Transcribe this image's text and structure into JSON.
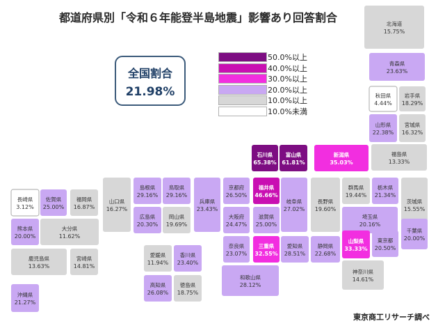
{
  "title": "都道府県別「令和６年能登半島地震」影響あり回答割合",
  "national": {
    "label": "全国割合",
    "value": "21.98%"
  },
  "source": "東京商工リサーチ調べ",
  "legend": [
    {
      "label": "50.0%以上",
      "color": "#7d0d82"
    },
    {
      "label": "40.0%以上",
      "color": "#c90fb2"
    },
    {
      "label": "30.0%以上",
      "color": "#f22ee0"
    },
    {
      "label": "20.0%以上",
      "color": "#c9a8f3"
    },
    {
      "label": "10.0%以上",
      "color": "#d7d7d7"
    },
    {
      "label": "10.0%未満",
      "color": "#ffffff"
    }
  ],
  "chart_data": {
    "type": "heatmap",
    "title": "都道府県別「令和６年能登半島地震」影響あり回答割合",
    "unit": "%",
    "prefectures": [
      {
        "name": "北海道",
        "value": 15.75,
        "label": "15.75%"
      },
      {
        "name": "青森県",
        "value": 23.63,
        "label": "23.63%"
      },
      {
        "name": "秋田県",
        "value": 4.44,
        "label": "4.44%"
      },
      {
        "name": "岩手県",
        "value": 18.29,
        "label": "18.29%"
      },
      {
        "name": "山形県",
        "value": 22.38,
        "label": "22.38%"
      },
      {
        "name": "宮城県",
        "value": 16.32,
        "label": "16.32%"
      },
      {
        "name": "福島県",
        "value": 13.33,
        "label": "13.33%"
      },
      {
        "name": "石川県",
        "value": 65.38,
        "label": "65.38%"
      },
      {
        "name": "富山県",
        "value": 61.81,
        "label": "61.81%"
      },
      {
        "name": "新潟県",
        "value": 35.03,
        "label": "35.03%"
      },
      {
        "name": "山口県",
        "value": 16.27,
        "label": "16.27%"
      },
      {
        "name": "島根県",
        "value": 29.16,
        "label": "29.16%"
      },
      {
        "name": "鳥取県",
        "value": 29.16,
        "label": "29.16%"
      },
      {
        "name": "兵庫県",
        "value": 23.43,
        "label": "23.43%"
      },
      {
        "name": "京都府",
        "value": 26.5,
        "label": "26.50%"
      },
      {
        "name": "福井県",
        "value": 46.66,
        "label": "46.66%"
      },
      {
        "name": "岐阜県",
        "value": 27.02,
        "label": "27.02%"
      },
      {
        "name": "長野県",
        "value": 19.6,
        "label": "19.60%"
      },
      {
        "name": "群馬県",
        "value": 19.44,
        "label": "19.44%"
      },
      {
        "name": "栃木県",
        "value": 21.34,
        "label": "21.34%"
      },
      {
        "name": "茨城県",
        "value": 15.55,
        "label": "15.55%"
      },
      {
        "name": "長崎県",
        "value": 3.12,
        "label": "3.12%"
      },
      {
        "name": "佐賀県",
        "value": 25.0,
        "label": "25.00%"
      },
      {
        "name": "福岡県",
        "value": 16.87,
        "label": "16.87%"
      },
      {
        "name": "広島県",
        "value": 20.3,
        "label": "20.30%"
      },
      {
        "name": "岡山県",
        "value": 19.69,
        "label": "19.69%"
      },
      {
        "name": "大阪府",
        "value": 24.47,
        "label": "24.47%"
      },
      {
        "name": "滋賀県",
        "value": 25.0,
        "label": "25.00%"
      },
      {
        "name": "埼玉県",
        "value": 20.16,
        "label": "20.16%"
      },
      {
        "name": "熊本県",
        "value": 20.0,
        "label": "20.00%"
      },
      {
        "name": "大分県",
        "value": 11.62,
        "label": "11.62%"
      },
      {
        "name": "奈良県",
        "value": 23.07,
        "label": "23.07%"
      },
      {
        "name": "三重県",
        "value": 32.55,
        "label": "32.55%"
      },
      {
        "name": "愛知県",
        "value": 28.51,
        "label": "28.51%"
      },
      {
        "name": "静岡県",
        "value": 22.68,
        "label": "22.68%"
      },
      {
        "name": "山梨県",
        "value": 33.33,
        "label": "33.33%"
      },
      {
        "name": "東京都",
        "value": 20.5,
        "label": "20.50%"
      },
      {
        "name": "千葉県",
        "value": 20.0,
        "label": "20.00%"
      },
      {
        "name": "鹿児島県",
        "value": 13.63,
        "label": "13.63%"
      },
      {
        "name": "宮崎県",
        "value": 14.81,
        "label": "14.81%"
      },
      {
        "name": "愛媛県",
        "value": 11.94,
        "label": "11.94%"
      },
      {
        "name": "香川県",
        "value": 23.4,
        "label": "23.40%"
      },
      {
        "name": "和歌山県",
        "value": 28.12,
        "label": "28.12%"
      },
      {
        "name": "神奈川県",
        "value": 14.61,
        "label": "14.61%"
      },
      {
        "name": "高知県",
        "value": 26.08,
        "label": "26.08%"
      },
      {
        "name": "徳島県",
        "value": 18.75,
        "label": "18.75%"
      },
      {
        "name": "沖縄県",
        "value": 21.27,
        "label": "21.27%"
      }
    ]
  }
}
